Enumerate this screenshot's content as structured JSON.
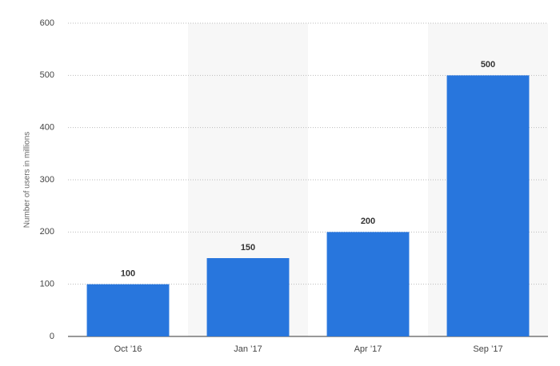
{
  "chart_data": {
    "type": "bar",
    "y_label": "Number of users in millions",
    "categories": [
      "Oct ’16",
      "Jan ’17",
      "Apr ’17",
      "Sep ’17"
    ],
    "values": [
      100,
      150,
      200,
      500
    ],
    "color": "#2876dd",
    "ylim": [
      0,
      600
    ],
    "yticks": [
      0,
      100,
      200,
      300,
      400,
      500,
      600
    ],
    "grid": true
  }
}
